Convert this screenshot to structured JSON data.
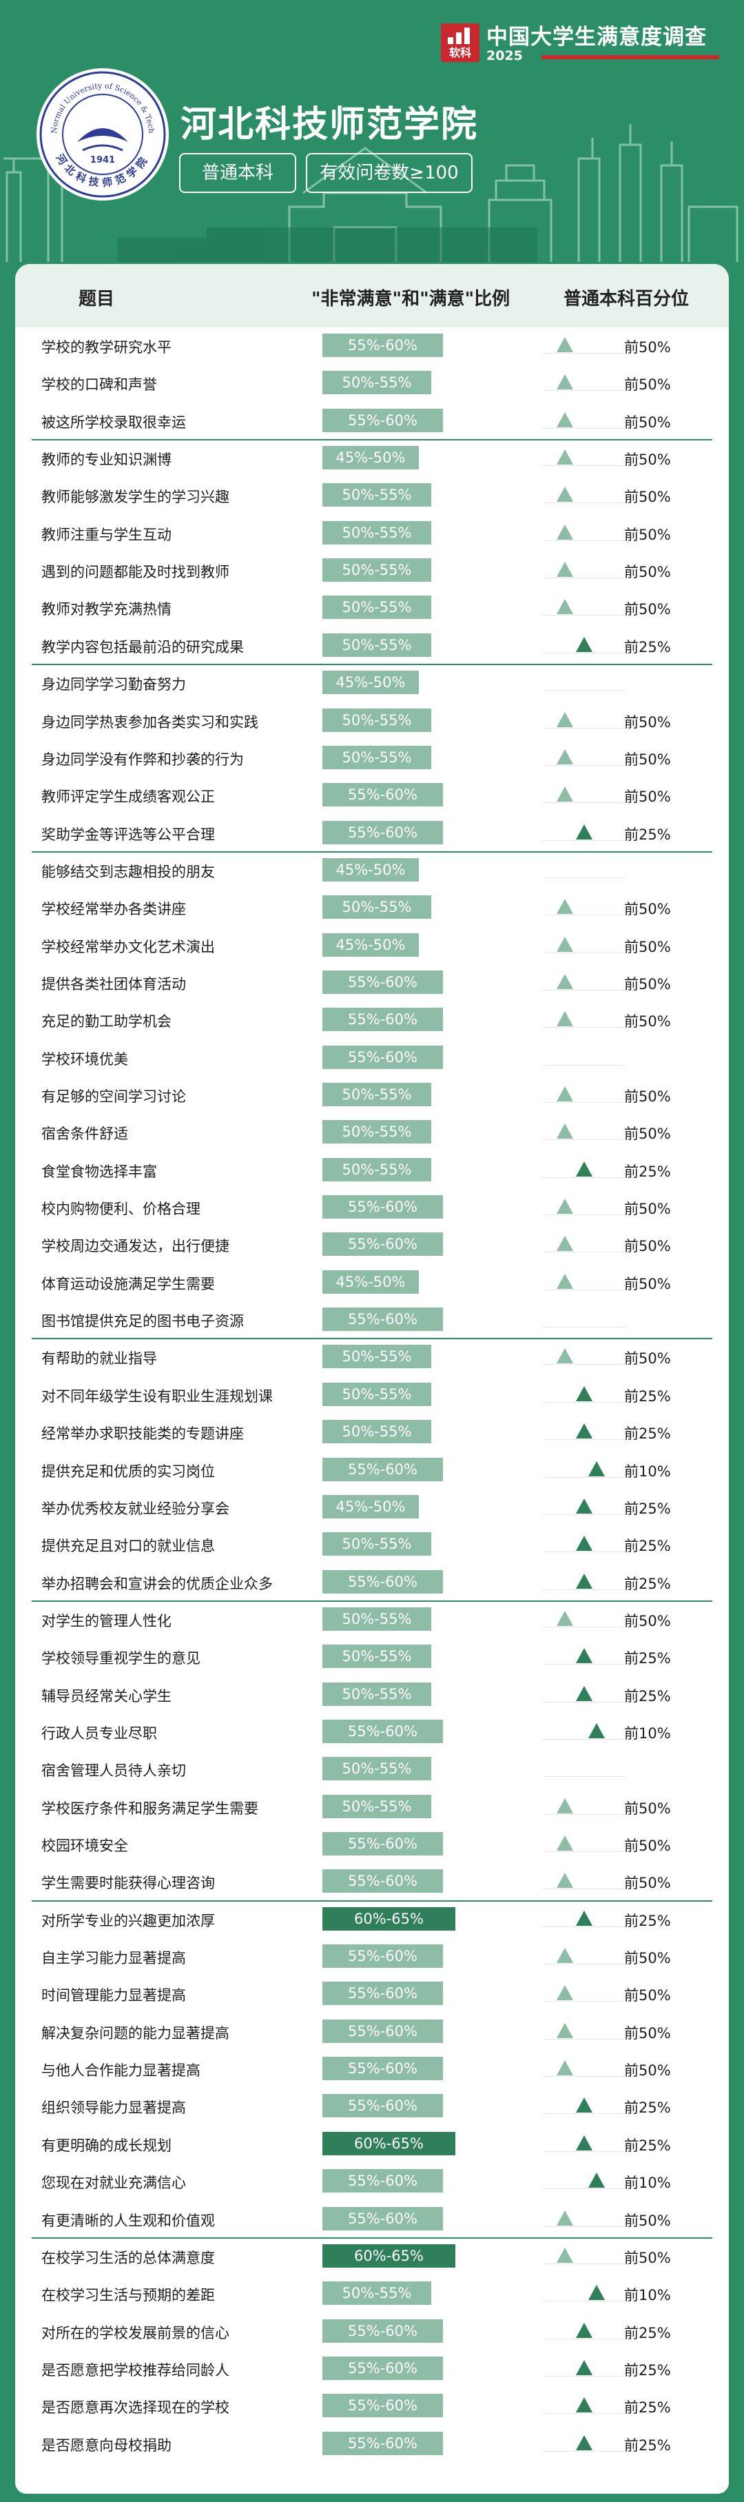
{
  "brand": {
    "logo_text": "软科",
    "title": "中国大学生满意度调查",
    "year": "2025"
  },
  "university": {
    "name": "河北科技师范学院",
    "emblem_year": "1941",
    "emblem_en": "Hebei Normal University of Science & Technology",
    "emblem_cn": "河北科技师范学院"
  },
  "tags": {
    "level": "普通本科",
    "count": "有效问卷数≥100"
  },
  "table_header": {
    "item": "题目",
    "ratio": "\"非常满意\"和\"满意\"比例",
    "percentile": "普通本科百分位"
  },
  "colors": {
    "background": "#2b8e66",
    "bar_normal": "#8dbca7",
    "bar_high": "#2f7f5b",
    "brand_red": "#c8282e",
    "panel": "#ffffff"
  },
  "chart_data": {
    "type": "table",
    "groups": [
      {
        "rows": [
          {
            "item": "学校的教学研究水平",
            "ratio": "55%-60%",
            "percentile": "前50%"
          },
          {
            "item": "学校的口碑和声誉",
            "ratio": "50%-55%",
            "percentile": "前50%"
          },
          {
            "item": "被这所学校录取很幸运",
            "ratio": "55%-60%",
            "percentile": "前50%"
          }
        ]
      },
      {
        "rows": [
          {
            "item": "教师的专业知识渊博",
            "ratio": "45%-50%",
            "percentile": "前50%"
          },
          {
            "item": "教师能够激发学生的学习兴趣",
            "ratio": "50%-55%",
            "percentile": "前50%"
          },
          {
            "item": "教师注重与学生互动",
            "ratio": "50%-55%",
            "percentile": "前50%"
          },
          {
            "item": "遇到的问题都能及时找到教师",
            "ratio": "50%-55%",
            "percentile": "前50%"
          },
          {
            "item": "教师对教学充满热情",
            "ratio": "50%-55%",
            "percentile": "前50%"
          },
          {
            "item": "教学内容包括最前沿的研究成果",
            "ratio": "50%-55%",
            "percentile": "前25%"
          }
        ]
      },
      {
        "rows": [
          {
            "item": "身边同学学习勤奋努力",
            "ratio": "45%-50%",
            "percentile": ""
          },
          {
            "item": "身边同学热衷参加各类实习和实践",
            "ratio": "50%-55%",
            "percentile": "前50%"
          },
          {
            "item": "身边同学没有作弊和抄袭的行为",
            "ratio": "50%-55%",
            "percentile": "前50%"
          },
          {
            "item": "教师评定学生成绩客观公正",
            "ratio": "55%-60%",
            "percentile": "前50%"
          },
          {
            "item": "奖助学金等评选等公平合理",
            "ratio": "55%-60%",
            "percentile": "前25%"
          }
        ]
      },
      {
        "rows": [
          {
            "item": "能够结交到志趣相投的朋友",
            "ratio": "45%-50%",
            "percentile": ""
          },
          {
            "item": "学校经常举办各类讲座",
            "ratio": "50%-55%",
            "percentile": "前50%"
          },
          {
            "item": "学校经常举办文化艺术演出",
            "ratio": "45%-50%",
            "percentile": "前50%"
          },
          {
            "item": "提供各类社团体育活动",
            "ratio": "55%-60%",
            "percentile": "前50%"
          },
          {
            "item": "充足的勤工助学机会",
            "ratio": "55%-60%",
            "percentile": "前50%"
          },
          {
            "item": "学校环境优美",
            "ratio": "55%-60%",
            "percentile": ""
          },
          {
            "item": "有足够的空间学习讨论",
            "ratio": "50%-55%",
            "percentile": "前50%"
          },
          {
            "item": "宿舍条件舒适",
            "ratio": "50%-55%",
            "percentile": "前50%"
          },
          {
            "item": "食堂食物选择丰富",
            "ratio": "50%-55%",
            "percentile": "前25%"
          },
          {
            "item": "校内购物便利、价格合理",
            "ratio": "55%-60%",
            "percentile": "前50%"
          },
          {
            "item": "学校周边交通发达，出行便捷",
            "ratio": "55%-60%",
            "percentile": "前50%"
          },
          {
            "item": "体育运动设施满足学生需要",
            "ratio": "45%-50%",
            "percentile": "前50%"
          },
          {
            "item": "图书馆提供充足的图书电子资源",
            "ratio": "55%-60%",
            "percentile": ""
          }
        ]
      },
      {
        "rows": [
          {
            "item": "有帮助的就业指导",
            "ratio": "50%-55%",
            "percentile": "前50%"
          },
          {
            "item": "对不同年级学生设有职业生涯规划课",
            "ratio": "50%-55%",
            "percentile": "前25%"
          },
          {
            "item": "经常举办求职技能类的专题讲座",
            "ratio": "50%-55%",
            "percentile": "前25%"
          },
          {
            "item": "提供充足和优质的实习岗位",
            "ratio": "55%-60%",
            "percentile": "前10%"
          },
          {
            "item": "举办优秀校友就业经验分享会",
            "ratio": "45%-50%",
            "percentile": "前25%"
          },
          {
            "item": "提供充足且对口的就业信息",
            "ratio": "50%-55%",
            "percentile": "前25%"
          },
          {
            "item": "举办招聘会和宣讲会的优质企业众多",
            "ratio": "55%-60%",
            "percentile": "前25%"
          }
        ]
      },
      {
        "rows": [
          {
            "item": "对学生的管理人性化",
            "ratio": "50%-55%",
            "percentile": "前50%"
          },
          {
            "item": "学校领导重视学生的意见",
            "ratio": "50%-55%",
            "percentile": "前25%"
          },
          {
            "item": "辅导员经常关心学生",
            "ratio": "50%-55%",
            "percentile": "前25%"
          },
          {
            "item": "行政人员专业尽职",
            "ratio": "55%-60%",
            "percentile": "前10%"
          },
          {
            "item": "宿舍管理人员待人亲切",
            "ratio": "50%-55%",
            "percentile": ""
          },
          {
            "item": "学校医疗条件和服务满足学生需要",
            "ratio": "50%-55%",
            "percentile": "前50%"
          },
          {
            "item": "校园环境安全",
            "ratio": "55%-60%",
            "percentile": "前50%"
          },
          {
            "item": "学生需要时能获得心理咨询",
            "ratio": "55%-60%",
            "percentile": "前50%"
          }
        ]
      },
      {
        "rows": [
          {
            "item": "对所学专业的兴趣更加浓厚",
            "ratio": "60%-65%",
            "percentile": "前25%"
          },
          {
            "item": "自主学习能力显著提高",
            "ratio": "55%-60%",
            "percentile": "前50%"
          },
          {
            "item": "时间管理能力显著提高",
            "ratio": "55%-60%",
            "percentile": "前50%"
          },
          {
            "item": "解决复杂问题的能力显著提高",
            "ratio": "55%-60%",
            "percentile": "前50%"
          },
          {
            "item": "与他人合作能力显著提高",
            "ratio": "55%-60%",
            "percentile": "前50%"
          },
          {
            "item": "组织领导能力显著提高",
            "ratio": "55%-60%",
            "percentile": "前25%"
          },
          {
            "item": "有更明确的成长规划",
            "ratio": "60%-65%",
            "percentile": "前25%"
          },
          {
            "item": "您现在对就业充满信心",
            "ratio": "55%-60%",
            "percentile": "前10%"
          },
          {
            "item": "有更清晰的人生观和价值观",
            "ratio": "55%-60%",
            "percentile": "前50%"
          }
        ]
      },
      {
        "rows": [
          {
            "item": "在校学习生活的总体满意度",
            "ratio": "60%-65%",
            "percentile": "前50%"
          },
          {
            "item": "在校学习生活与预期的差距",
            "ratio": "50%-55%",
            "percentile": "前10%"
          },
          {
            "item": "对所在的学校发展前景的信心",
            "ratio": "55%-60%",
            "percentile": "前25%"
          },
          {
            "item": "是否愿意把学校推荐给同龄人",
            "ratio": "55%-60%",
            "percentile": "前25%"
          },
          {
            "item": "是否愿意再次选择现在的学校",
            "ratio": "55%-60%",
            "percentile": "前25%"
          },
          {
            "item": "是否愿意向母校捐助",
            "ratio": "55%-60%",
            "percentile": "前25%"
          }
        ]
      }
    ]
  }
}
